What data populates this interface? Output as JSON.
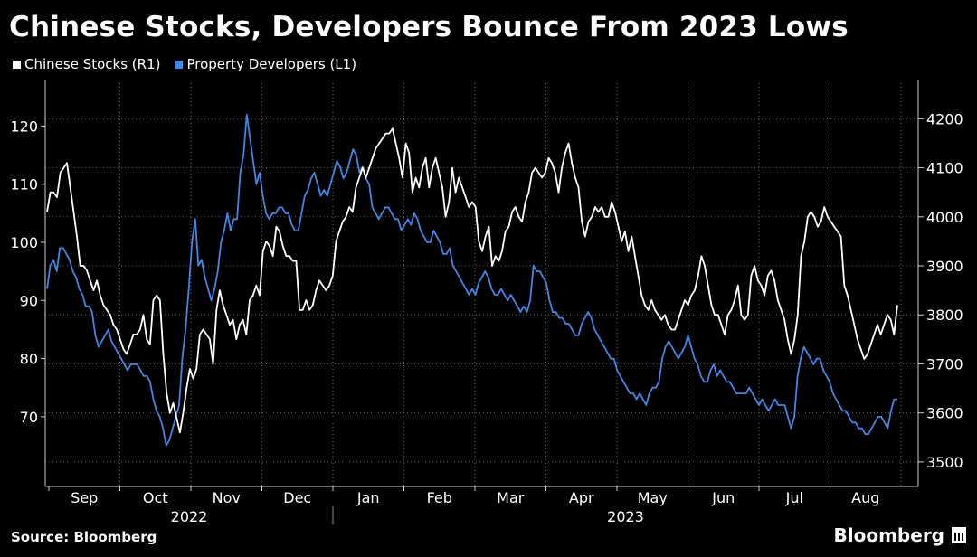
{
  "title": "Chinese Stocks, Developers Bounce From 2023 Lows",
  "legend": [
    {
      "label": "Chinese Stocks (R1)",
      "color": "#ffffff"
    },
    {
      "label": "Property Developers (L1)",
      "color": "#3f87e8"
    }
  ],
  "source": "Source: Bloomberg",
  "brand": "Bloomberg",
  "chart_data": {
    "type": "line",
    "months": [
      "Sep",
      "Oct",
      "Nov",
      "Dec",
      "Jan",
      "Feb",
      "Mar",
      "Apr",
      "May",
      "Jun",
      "Jul",
      "Aug"
    ],
    "years": [
      "2022",
      "2023"
    ],
    "left_axis": {
      "ticks": [
        70,
        80,
        90,
        100,
        110,
        120
      ],
      "range": [
        58,
        128
      ]
    },
    "right_axis": {
      "ticks": [
        3500,
        3600,
        3700,
        3800,
        3900,
        4000,
        4100,
        4200
      ],
      "range": [
        3450,
        4280
      ]
    },
    "series": [
      {
        "name": "Chinese Stocks (R1)",
        "axis": "right",
        "color": "#ffffff",
        "values": [
          4010,
          4050,
          4050,
          4040,
          4090,
          4100,
          4110,
          4060,
          4010,
          3960,
          3900,
          3900,
          3890,
          3870,
          3850,
          3870,
          3840,
          3820,
          3810,
          3800,
          3780,
          3770,
          3750,
          3730,
          3720,
          3740,
          3760,
          3760,
          3770,
          3800,
          3750,
          3740,
          3830,
          3840,
          3830,
          3720,
          3640,
          3600,
          3620,
          3590,
          3560,
          3600,
          3650,
          3690,
          3670,
          3690,
          3760,
          3770,
          3760,
          3750,
          3700,
          3810,
          3850,
          3820,
          3800,
          3780,
          3790,
          3750,
          3780,
          3790,
          3760,
          3830,
          3840,
          3860,
          3840,
          3930,
          3950,
          3940,
          3920,
          3980,
          3970,
          3940,
          3920,
          3920,
          3910,
          3910,
          3810,
          3810,
          3830,
          3810,
          3820,
          3850,
          3870,
          3860,
          3850,
          3860,
          3880,
          3950,
          3970,
          3990,
          4000,
          4020,
          4010,
          4060,
          4080,
          4100,
          4080,
          4100,
          4120,
          4140,
          4150,
          4160,
          4170,
          4170,
          4180,
          4150,
          4120,
          4080,
          4150,
          4130,
          4050,
          4080,
          4060,
          4100,
          4120,
          4060,
          4100,
          4120,
          4090,
          4060,
          4000,
          4030,
          4100,
          4050,
          4080,
          4060,
          4040,
          4020,
          4030,
          4020,
          3950,
          3930,
          3960,
          3980,
          3900,
          3920,
          3910,
          3930,
          3970,
          3980,
          4010,
          4020,
          4000,
          3990,
          4030,
          4050,
          4090,
          4100,
          4090,
          4080,
          4090,
          4120,
          4110,
          4090,
          4050,
          4100,
          4130,
          4150,
          4110,
          4080,
          4060,
          3990,
          3960,
          3990,
          4000,
          4020,
          4010,
          4020,
          4000,
          4000,
          4030,
          4010,
          3980,
          3950,
          3970,
          3930,
          3960,
          3920,
          3880,
          3840,
          3820,
          3810,
          3830,
          3810,
          3800,
          3790,
          3800,
          3780,
          3770,
          3770,
          3790,
          3810,
          3830,
          3820,
          3840,
          3850,
          3880,
          3920,
          3900,
          3860,
          3820,
          3800,
          3800,
          3780,
          3760,
          3800,
          3810,
          3830,
          3860,
          3800,
          3790,
          3800,
          3880,
          3900,
          3870,
          3860,
          3840,
          3880,
          3890,
          3870,
          3830,
          3810,
          3790,
          3750,
          3720,
          3750,
          3800,
          3920,
          3950,
          4000,
          4010,
          4000,
          3980,
          3990,
          4020,
          4000,
          3990,
          3980,
          3970,
          3960,
          3860,
          3840,
          3810,
          3780,
          3750,
          3730,
          3710,
          3720,
          3740,
          3760,
          3780,
          3760,
          3780,
          3800,
          3790,
          3760,
          3820
        ]
      },
      {
        "name": "Property Developers (L1)",
        "axis": "left",
        "color": "#3f87e8",
        "values": [
          92,
          96,
          97,
          95,
          99,
          99,
          98,
          97,
          95,
          94,
          92,
          91,
          89,
          89,
          88,
          84,
          82,
          83,
          84,
          85,
          83,
          82,
          81,
          80,
          79,
          78,
          79,
          79,
          79,
          78,
          77,
          77,
          76,
          73,
          71,
          70,
          68,
          65,
          66,
          68,
          70,
          72,
          80,
          85,
          92,
          100,
          104,
          96,
          97,
          94,
          92,
          90,
          92,
          95,
          100,
          102,
          105,
          102,
          104,
          104,
          112,
          115,
          122,
          118,
          114,
          110,
          112,
          108,
          105,
          104,
          105,
          105,
          106,
          106,
          105,
          105,
          103,
          102,
          102,
          105,
          108,
          109,
          111,
          112,
          110,
          108,
          109,
          108,
          110,
          112,
          114,
          113,
          111,
          112,
          114,
          116,
          115,
          112,
          113,
          111,
          110,
          106,
          105,
          104,
          105,
          106,
          106,
          105,
          104,
          104,
          102,
          103,
          104,
          103,
          105,
          104,
          102,
          101,
          100,
          100,
          102,
          101,
          100,
          98,
          98,
          99,
          96,
          95,
          94,
          93,
          92,
          91,
          92,
          91,
          93,
          94,
          95,
          94,
          92,
          91,
          91,
          92,
          91,
          90,
          91,
          90,
          89,
          88,
          89,
          88,
          90,
          96,
          95,
          95,
          94,
          93,
          90,
          88,
          88,
          87,
          87,
          86,
          86,
          85,
          84,
          84,
          86,
          87,
          88,
          87,
          85,
          84,
          83,
          82,
          81,
          80,
          80,
          78,
          77,
          76,
          75,
          74,
          74,
          73,
          74,
          73,
          72,
          74,
          75,
          75,
          76,
          80,
          82,
          83,
          82,
          81,
          80,
          81,
          82,
          84,
          82,
          80,
          79,
          77,
          76,
          76,
          78,
          79,
          77,
          78,
          77,
          76,
          76,
          75,
          74,
          74,
          74,
          74,
          75,
          74,
          73,
          72,
          73,
          72,
          71,
          72,
          73,
          72,
          72,
          72,
          70,
          68,
          70,
          77,
          80,
          82,
          81,
          80,
          79,
          80,
          80,
          78,
          77,
          76,
          74,
          73,
          72,
          71,
          71,
          70,
          69,
          69,
          68,
          68,
          67,
          67,
          68,
          69,
          70,
          70,
          69,
          68,
          71,
          73,
          73
        ]
      }
    ]
  }
}
